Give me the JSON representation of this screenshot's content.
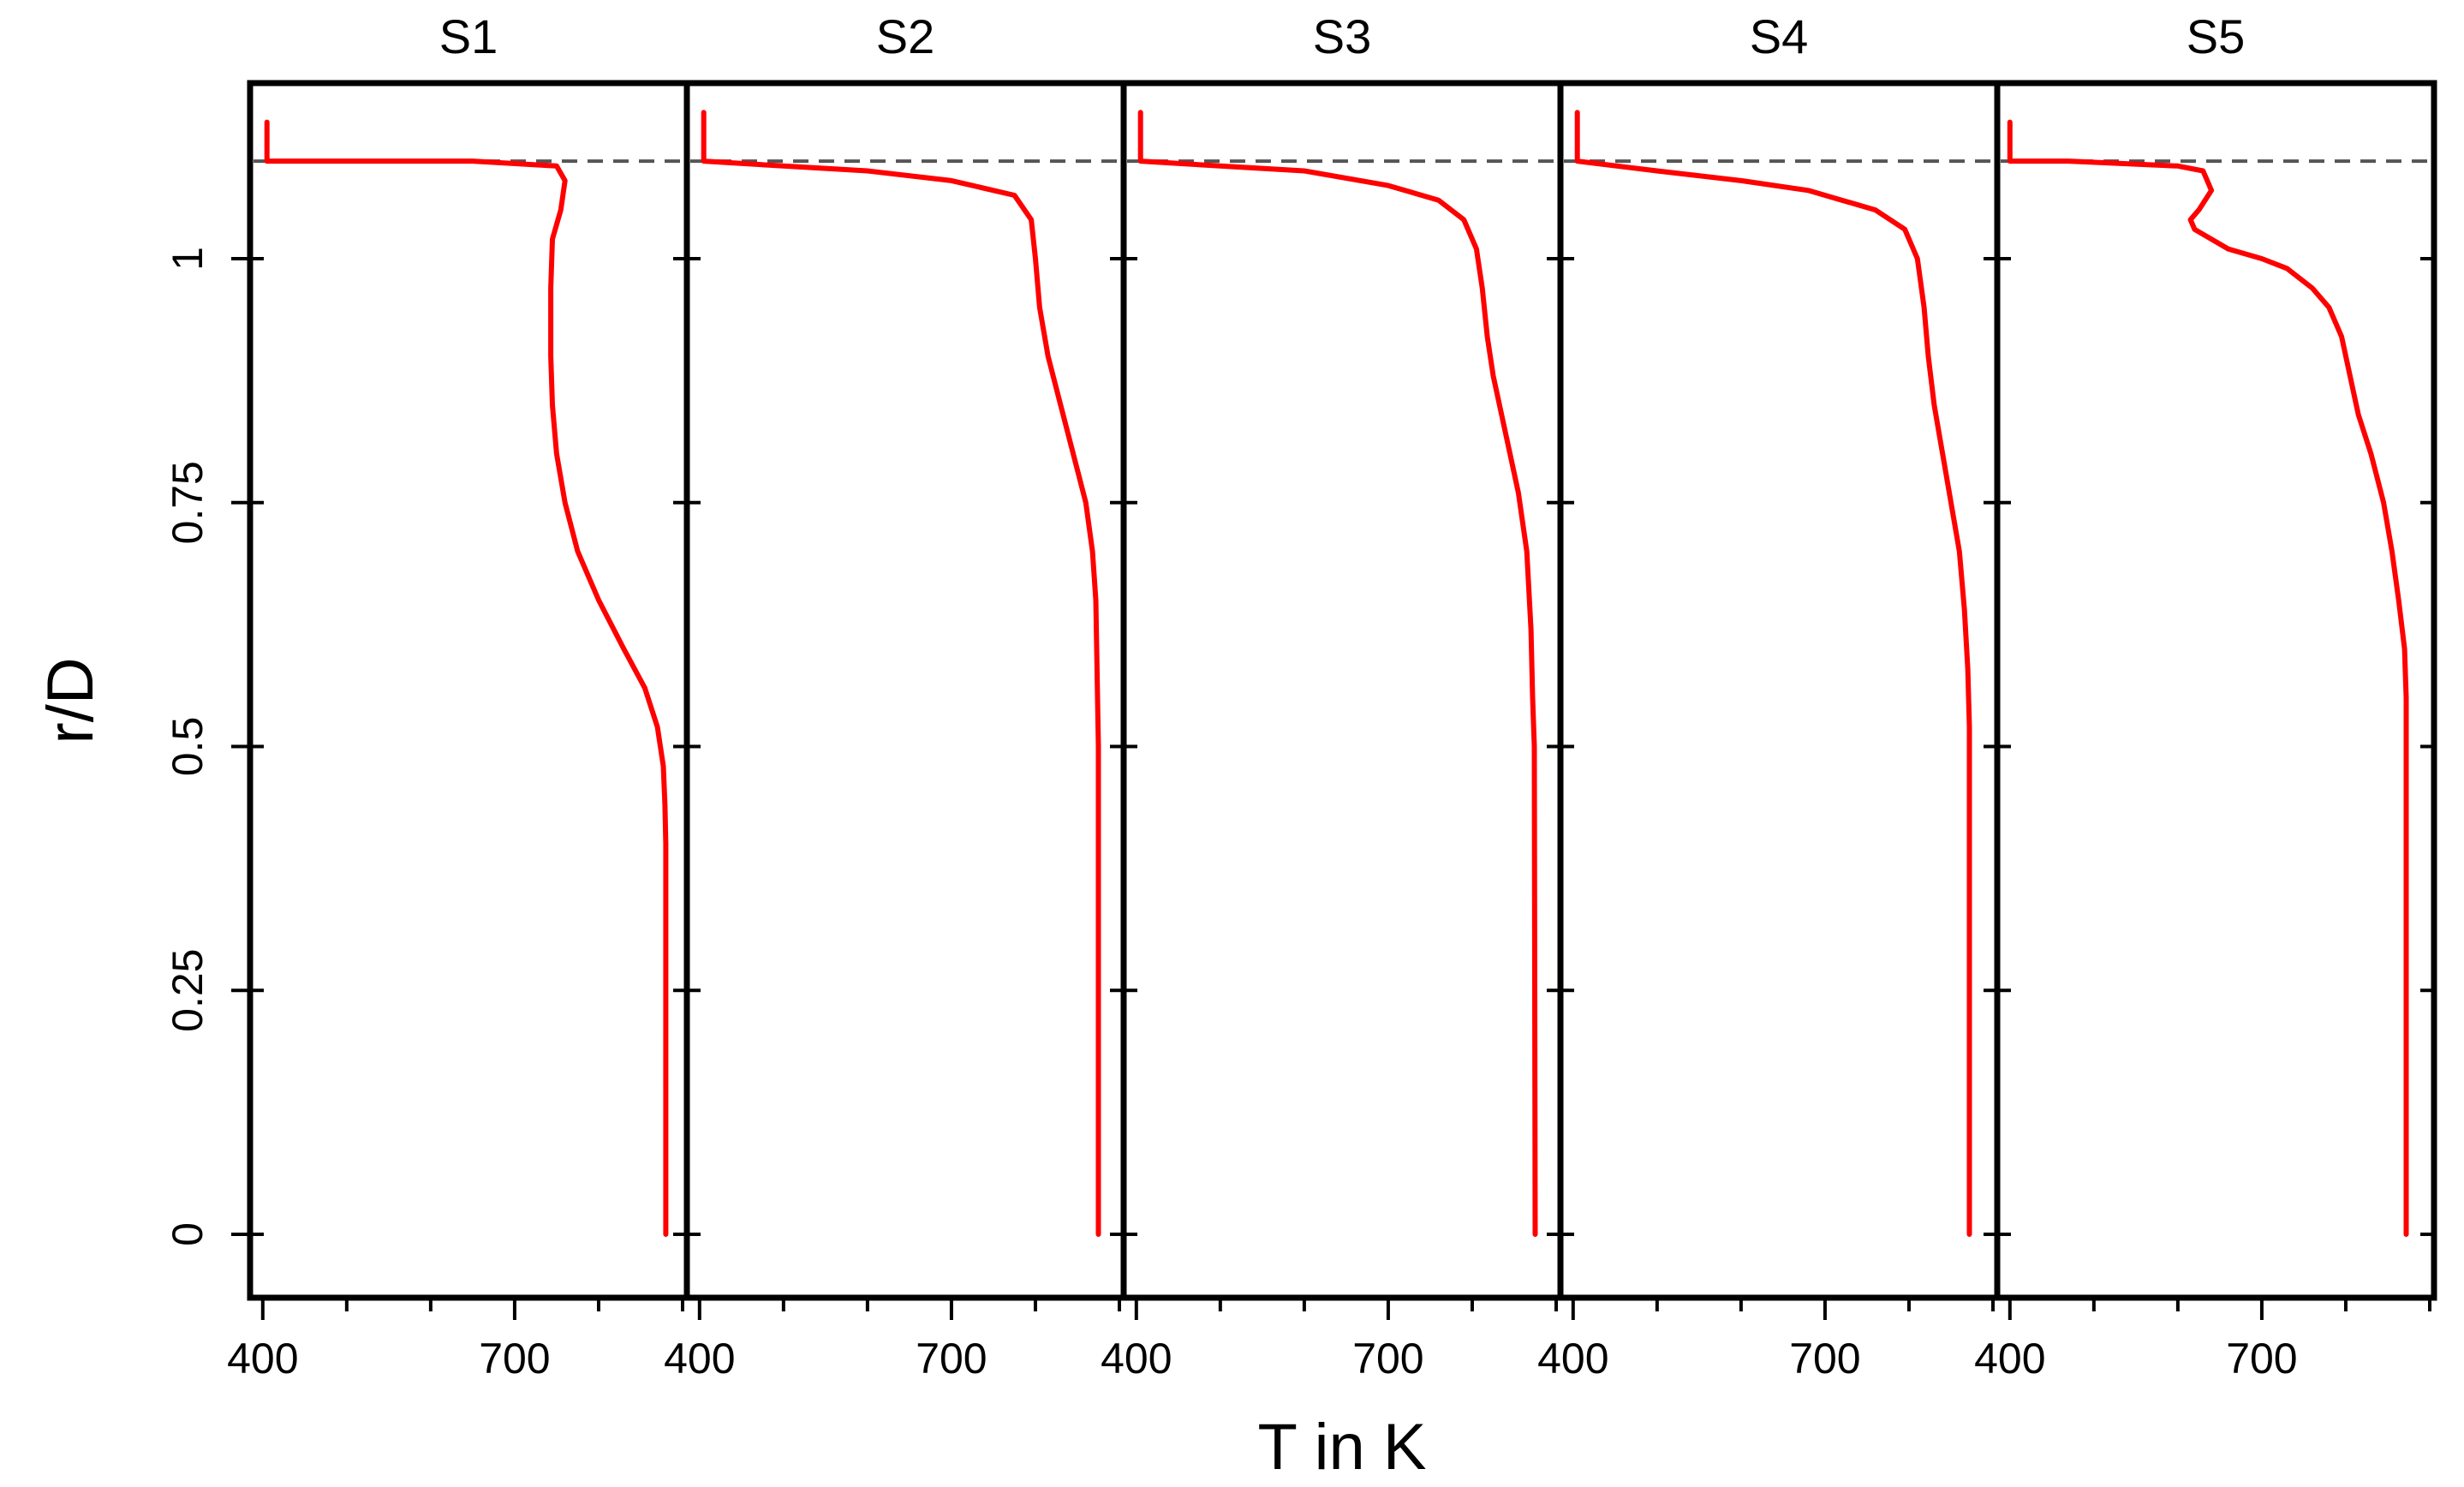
{
  "chart_data": {
    "type": "line",
    "xlabel": "T in K",
    "ylabel": "r/D",
    "xlim": [
      390,
      900
    ],
    "ylim": [
      -0.065,
      1.18
    ],
    "x_ticks": [
      400,
      500,
      600,
      700,
      800,
      900
    ],
    "x_tick_labels": [
      "400",
      "700"
    ],
    "y_ticks": [
      0,
      0.25,
      0.5,
      0.75,
      1
    ],
    "y_tick_labels": [
      "0",
      "0.25",
      "0.5",
      "0.75",
      "1"
    ],
    "reference_line": {
      "y": 1.1,
      "style": "dashed",
      "color": "#555555"
    },
    "line_color": "#ff0000",
    "panels": [
      {
        "title": "S1",
        "points": [
          [
            405,
            1.14
          ],
          [
            405,
            1.1
          ],
          [
            650,
            1.1
          ],
          [
            750,
            1.095
          ],
          [
            760,
            1.08
          ],
          [
            755,
            1.05
          ],
          [
            745,
            1.02
          ],
          [
            743,
            0.97
          ],
          [
            743,
            0.9
          ],
          [
            745,
            0.85
          ],
          [
            750,
            0.8
          ],
          [
            760,
            0.75
          ],
          [
            775,
            0.7
          ],
          [
            800,
            0.65
          ],
          [
            830,
            0.6
          ],
          [
            855,
            0.56
          ],
          [
            870,
            0.52
          ],
          [
            877,
            0.48
          ],
          [
            879,
            0.44
          ],
          [
            880,
            0.4
          ],
          [
            880,
            0
          ]
        ]
      },
      {
        "title": "S2",
        "points": [
          [
            405,
            1.15
          ],
          [
            405,
            1.1
          ],
          [
            500,
            1.095
          ],
          [
            600,
            1.09
          ],
          [
            700,
            1.08
          ],
          [
            775,
            1.065
          ],
          [
            795,
            1.04
          ],
          [
            800,
            1.0
          ],
          [
            805,
            0.95
          ],
          [
            815,
            0.9
          ],
          [
            830,
            0.85
          ],
          [
            845,
            0.8
          ],
          [
            860,
            0.75
          ],
          [
            868,
            0.7
          ],
          [
            872,
            0.65
          ],
          [
            874,
            0.55
          ],
          [
            875,
            0.5
          ],
          [
            875,
            0
          ]
        ]
      },
      {
        "title": "S3",
        "points": [
          [
            405,
            1.15
          ],
          [
            405,
            1.1
          ],
          [
            500,
            1.095
          ],
          [
            600,
            1.09
          ],
          [
            700,
            1.075
          ],
          [
            760,
            1.06
          ],
          [
            790,
            1.04
          ],
          [
            805,
            1.01
          ],
          [
            812,
            0.97
          ],
          [
            818,
            0.92
          ],
          [
            825,
            0.88
          ],
          [
            835,
            0.84
          ],
          [
            845,
            0.8
          ],
          [
            855,
            0.76
          ],
          [
            865,
            0.7
          ],
          [
            870,
            0.62
          ],
          [
            872,
            0.55
          ],
          [
            874,
            0.5
          ],
          [
            875,
            0
          ]
        ]
      },
      {
        "title": "S4",
        "points": [
          [
            405,
            1.15
          ],
          [
            405,
            1.1
          ],
          [
            500,
            1.09
          ],
          [
            600,
            1.08
          ],
          [
            680,
            1.07
          ],
          [
            720,
            1.06
          ],
          [
            760,
            1.05
          ],
          [
            795,
            1.03
          ],
          [
            810,
            1.0
          ],
          [
            818,
            0.95
          ],
          [
            823,
            0.9
          ],
          [
            830,
            0.85
          ],
          [
            840,
            0.8
          ],
          [
            850,
            0.75
          ],
          [
            860,
            0.7
          ],
          [
            866,
            0.64
          ],
          [
            870,
            0.58
          ],
          [
            872,
            0.52
          ],
          [
            872,
            0
          ]
        ]
      },
      {
        "title": "S5",
        "points": [
          [
            400,
            1.14
          ],
          [
            400,
            1.1
          ],
          [
            470,
            1.1
          ],
          [
            600,
            1.095
          ],
          [
            630,
            1.09
          ],
          [
            640,
            1.07
          ],
          [
            625,
            1.05
          ],
          [
            615,
            1.04
          ],
          [
            620,
            1.03
          ],
          [
            660,
            1.01
          ],
          [
            700,
            1.0
          ],
          [
            730,
            0.99
          ],
          [
            760,
            0.97
          ],
          [
            780,
            0.95
          ],
          [
            795,
            0.92
          ],
          [
            805,
            0.88
          ],
          [
            815,
            0.84
          ],
          [
            830,
            0.8
          ],
          [
            845,
            0.75
          ],
          [
            855,
            0.7
          ],
          [
            863,
            0.65
          ],
          [
            870,
            0.6
          ],
          [
            872,
            0.55
          ],
          [
            872,
            0.5
          ],
          [
            872,
            0
          ]
        ]
      }
    ]
  }
}
